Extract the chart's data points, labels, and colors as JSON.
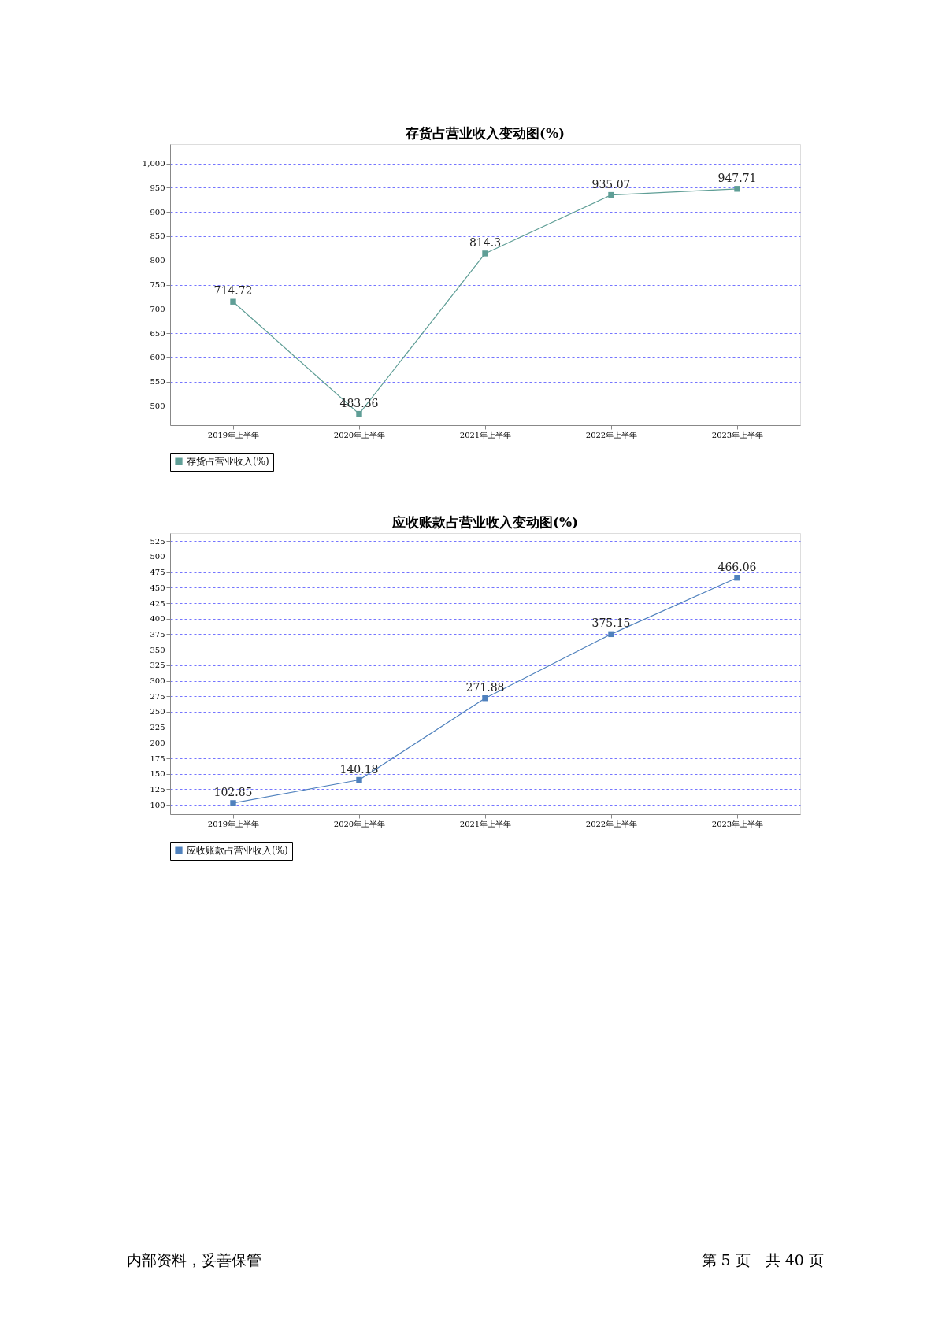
{
  "chart_data": [
    {
      "type": "line",
      "title": "存货占营业收入变动图(%)",
      "categories": [
        "2019年上半年",
        "2020年上半年",
        "2021年上半年",
        "2022年上半年",
        "2023年上半年"
      ],
      "series": [
        {
          "name": "存货占营业收入(%)",
          "color": "#5f9e96",
          "values": [
            714.72,
            483.36,
            814.3,
            935.07,
            947.71
          ]
        }
      ],
      "ylim": [
        460,
        1040
      ],
      "yticks": [
        500,
        550,
        600,
        650,
        700,
        750,
        800,
        850,
        900,
        950,
        {
          "value": 1000,
          "label": "1,000"
        }
      ],
      "grid": "y",
      "legend": "bottom",
      "marker": "square",
      "line_style": "solid",
      "data_labels": true
    },
    {
      "type": "line",
      "title": "应收账款占营业收入变动图(%)",
      "categories": [
        "2019年上半年",
        "2020年上半年",
        "2021年上半年",
        "2022年上半年",
        "2023年上半年"
      ],
      "series": [
        {
          "name": "应收账款占营业收入(%)",
          "color": "#4f81bd",
          "values": [
            102.85,
            140.18,
            271.88,
            375.15,
            466.06
          ]
        }
      ],
      "ylim": [
        85,
        538
      ],
      "yticks": [
        100,
        125,
        150,
        175,
        200,
        225,
        250,
        275,
        300,
        325,
        350,
        375,
        400,
        425,
        450,
        475,
        500,
        525
      ],
      "grid": "y",
      "legend": "bottom",
      "marker": "square",
      "line_style": "solid",
      "data_labels": true,
      "annotations": [
        "内部资料，妥善保管",
        "第 5 页　共 40 页"
      ]
    }
  ]
}
